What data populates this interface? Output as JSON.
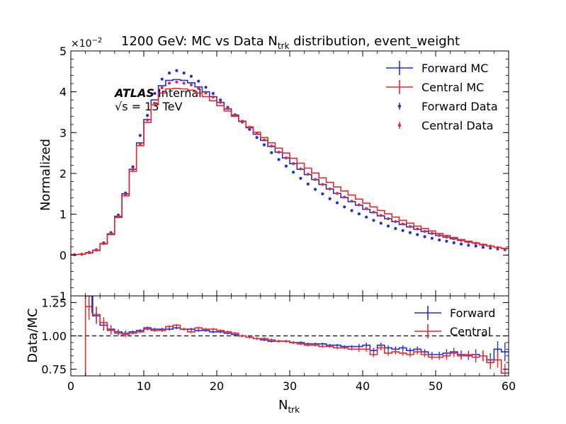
{
  "chart_data": [
    {
      "type": "line",
      "panel": "main",
      "title": "1200 GeV: MC vs Data N",
      "title_sub": "trk",
      "title_tail": " distribution, event_weight",
      "ylabel": "Normalized",
      "y_multiplier": "×10",
      "y_multiplier_exp": "−2",
      "xlim": [
        0,
        60
      ],
      "ylim": [
        -1,
        5
      ],
      "yticks": [
        -1,
        0,
        1,
        2,
        3,
        4,
        5
      ],
      "ytick_labels": [
        "−1",
        "0",
        "1",
        "2",
        "3",
        "4",
        "5"
      ],
      "annotation": {
        "atlas": "ATLAS",
        "internal": " Internal",
        "energy": "√s = 13 TeV"
      },
      "legend": {
        "position": "top-right",
        "entries": [
          "Forward MC",
          "Central MC",
          "Forward Data",
          "Central Data"
        ]
      },
      "x": [
        0,
        1,
        2,
        3,
        4,
        5,
        6,
        7,
        8,
        9,
        10,
        11,
        12,
        13,
        14,
        15,
        16,
        17,
        18,
        19,
        20,
        21,
        22,
        23,
        24,
        25,
        26,
        27,
        28,
        29,
        30,
        31,
        32,
        33,
        34,
        35,
        36,
        37,
        38,
        39,
        40,
        41,
        42,
        43,
        44,
        45,
        46,
        47,
        48,
        49,
        50,
        51,
        52,
        53,
        54,
        55,
        56,
        57,
        58,
        59
      ],
      "series": [
        {
          "name": "Forward MC",
          "color": "#1f2fdc",
          "style": "step",
          "values": [
            0.01,
            0.02,
            0.06,
            0.12,
            0.28,
            0.52,
            0.95,
            1.5,
            2.1,
            2.75,
            3.32,
            3.8,
            4.15,
            4.28,
            4.3,
            4.28,
            4.22,
            4.12,
            4.0,
            3.88,
            3.74,
            3.58,
            3.43,
            3.28,
            3.12,
            2.96,
            2.81,
            2.66,
            2.52,
            2.38,
            2.24,
            2.1,
            1.97,
            1.85,
            1.73,
            1.62,
            1.51,
            1.41,
            1.31,
            1.22,
            1.12,
            1.04,
            0.96,
            0.89,
            0.82,
            0.75,
            0.69,
            0.63,
            0.58,
            0.53,
            0.48,
            0.44,
            0.4,
            0.36,
            0.32,
            0.29,
            0.25,
            0.22,
            0.19,
            0.16
          ]
        },
        {
          "name": "Central MC",
          "color": "#e8292c",
          "style": "step",
          "values": [
            0.01,
            0.02,
            0.05,
            0.11,
            0.27,
            0.5,
            0.92,
            1.45,
            2.05,
            2.68,
            3.25,
            3.68,
            3.97,
            4.07,
            4.08,
            4.07,
            4.04,
            3.97,
            3.88,
            3.78,
            3.66,
            3.53,
            3.4,
            3.27,
            3.14,
            3.01,
            2.88,
            2.75,
            2.62,
            2.5,
            2.37,
            2.25,
            2.13,
            2.01,
            1.89,
            1.78,
            1.67,
            1.57,
            1.47,
            1.37,
            1.27,
            1.18,
            1.09,
            1.01,
            0.93,
            0.85,
            0.78,
            0.71,
            0.65,
            0.59,
            0.53,
            0.48,
            0.43,
            0.38,
            0.34,
            0.3,
            0.26,
            0.22,
            0.19,
            0.16
          ]
        },
        {
          "name": "Forward Data",
          "color": "#1f2fdc",
          "style": "points",
          "values": [
            0.01,
            0.02,
            0.07,
            0.13,
            0.3,
            0.55,
            0.98,
            1.52,
            2.16,
            2.93,
            3.42,
            3.96,
            4.31,
            4.46,
            4.52,
            4.46,
            4.38,
            4.26,
            4.11,
            3.96,
            3.8,
            3.62,
            3.44,
            3.26,
            3.08,
            2.88,
            2.7,
            2.51,
            2.34,
            2.18,
            2.03,
            1.88,
            1.74,
            1.61,
            1.5,
            1.38,
            1.28,
            1.18,
            1.09,
            1.01,
            0.93,
            0.85,
            0.78,
            0.71,
            0.65,
            0.6,
            0.55,
            0.5,
            0.45,
            0.41,
            0.37,
            0.34,
            0.3,
            0.27,
            0.24,
            0.22,
            0.19,
            0.17,
            0.15,
            0.13
          ]
        },
        {
          "name": "Central Data",
          "color": "#e8292c",
          "style": "points",
          "values": [
            0.01,
            0.02,
            0.06,
            0.12,
            0.28,
            0.52,
            0.95,
            1.48,
            2.1,
            2.72,
            3.31,
            3.72,
            4.1,
            4.21,
            4.24,
            4.21,
            4.17,
            4.08,
            3.97,
            3.87,
            3.74,
            3.59,
            3.43,
            3.28,
            3.13,
            2.98,
            2.82,
            2.67,
            2.52,
            2.38,
            2.24,
            2.11,
            1.98,
            1.85,
            1.73,
            1.62,
            1.51,
            1.42,
            1.32,
            1.23,
            1.14,
            1.05,
            0.97,
            0.89,
            0.82,
            0.76,
            0.7,
            0.64,
            0.58,
            0.53,
            0.48,
            0.44,
            0.4,
            0.36,
            0.32,
            0.29,
            0.25,
            0.22,
            0.18,
            0.14
          ]
        }
      ]
    },
    {
      "type": "line",
      "panel": "ratio",
      "xlabel": "N",
      "xlabel_sub": "trk",
      "ylabel": "Data/MC",
      "xlim": [
        0,
        60
      ],
      "ylim": [
        0.7,
        1.3
      ],
      "xticks": [
        0,
        10,
        20,
        30,
        40,
        50,
        60
      ],
      "xtick_labels": [
        "0",
        "10",
        "20",
        "30",
        "40",
        "50",
        "60"
      ],
      "yticks": [
        0.75,
        1.0,
        1.25
      ],
      "ytick_labels": [
        "0.75",
        "1.00",
        "1.25"
      ],
      "reference_line": 1.0,
      "legend": {
        "position": "top-right",
        "entries": [
          "Forward",
          "Central"
        ]
      },
      "x": [
        0,
        1,
        2,
        3,
        4,
        5,
        6,
        7,
        8,
        9,
        10,
        11,
        12,
        13,
        14,
        15,
        16,
        17,
        18,
        19,
        20,
        21,
        22,
        23,
        24,
        25,
        26,
        27,
        28,
        29,
        30,
        31,
        32,
        33,
        34,
        35,
        36,
        37,
        38,
        39,
        40,
        41,
        42,
        43,
        44,
        45,
        46,
        47,
        48,
        49,
        50,
        51,
        52,
        53,
        54,
        55,
        56,
        57,
        58,
        59
      ],
      "series": [
        {
          "name": "Forward",
          "color": "#1f2fdc",
          "values": [
            null,
            null,
            1.3,
            1.15,
            1.08,
            1.05,
            1.03,
            1.02,
            1.03,
            1.04,
            1.06,
            1.05,
            1.05,
            1.05,
            1.06,
            1.05,
            1.05,
            1.04,
            1.04,
            1.03,
            1.03,
            1.02,
            1.01,
            1.0,
            0.99,
            0.98,
            0.97,
            0.96,
            0.96,
            0.96,
            0.95,
            0.95,
            0.94,
            0.94,
            0.94,
            0.93,
            0.93,
            0.92,
            0.92,
            0.92,
            0.93,
            0.89,
            0.93,
            0.91,
            0.9,
            0.91,
            0.89,
            0.9,
            0.88,
            0.86,
            0.86,
            0.87,
            0.88,
            0.86,
            0.85,
            0.86,
            0.85,
            0.82,
            0.9,
            0.88
          ],
          "errors": [
            0.5,
            0.4,
            0.12,
            0.06,
            0.04,
            0.03,
            0.02,
            0.02,
            0.01,
            0.01,
            0.01,
            0.01,
            0.01,
            0.01,
            0.01,
            0.01,
            0.01,
            0.01,
            0.01,
            0.01,
            0.01,
            0.01,
            0.01,
            0.01,
            0.01,
            0.01,
            0.01,
            0.01,
            0.01,
            0.01,
            0.01,
            0.01,
            0.01,
            0.01,
            0.01,
            0.01,
            0.01,
            0.01,
            0.01,
            0.02,
            0.02,
            0.02,
            0.02,
            0.02,
            0.02,
            0.02,
            0.02,
            0.02,
            0.02,
            0.02,
            0.02,
            0.03,
            0.03,
            0.03,
            0.03,
            0.04,
            0.04,
            0.05,
            0.06,
            0.07
          ]
        },
        {
          "name": "Central",
          "color": "#e8292c",
          "values": [
            null,
            null,
            1.22,
            1.16,
            1.1,
            1.04,
            1.02,
            1.01,
            1.02,
            1.03,
            1.05,
            1.04,
            1.04,
            1.07,
            1.08,
            1.05,
            1.03,
            1.06,
            1.05,
            1.05,
            1.04,
            1.03,
            1.02,
            1.0,
            0.99,
            0.98,
            0.98,
            0.97,
            0.96,
            0.96,
            0.95,
            0.94,
            0.93,
            0.93,
            0.92,
            0.92,
            0.91,
            0.91,
            0.9,
            0.9,
            0.9,
            0.86,
            0.91,
            0.87,
            0.88,
            0.87,
            0.86,
            0.88,
            0.86,
            0.84,
            0.84,
            0.85,
            0.87,
            0.85,
            0.86,
            0.84,
            0.85,
            0.8,
            0.82,
            0.72
          ],
          "errors": [
            0.5,
            0.4,
            0.1,
            0.06,
            0.04,
            0.03,
            0.02,
            0.02,
            0.01,
            0.01,
            0.01,
            0.01,
            0.01,
            0.01,
            0.01,
            0.01,
            0.01,
            0.01,
            0.01,
            0.01,
            0.01,
            0.01,
            0.01,
            0.01,
            0.01,
            0.01,
            0.01,
            0.01,
            0.01,
            0.01,
            0.01,
            0.01,
            0.01,
            0.01,
            0.01,
            0.01,
            0.01,
            0.01,
            0.01,
            0.02,
            0.02,
            0.02,
            0.02,
            0.02,
            0.02,
            0.02,
            0.02,
            0.02,
            0.02,
            0.02,
            0.02,
            0.03,
            0.03,
            0.03,
            0.03,
            0.04,
            0.04,
            0.05,
            0.06,
            0.07
          ]
        }
      ]
    }
  ]
}
